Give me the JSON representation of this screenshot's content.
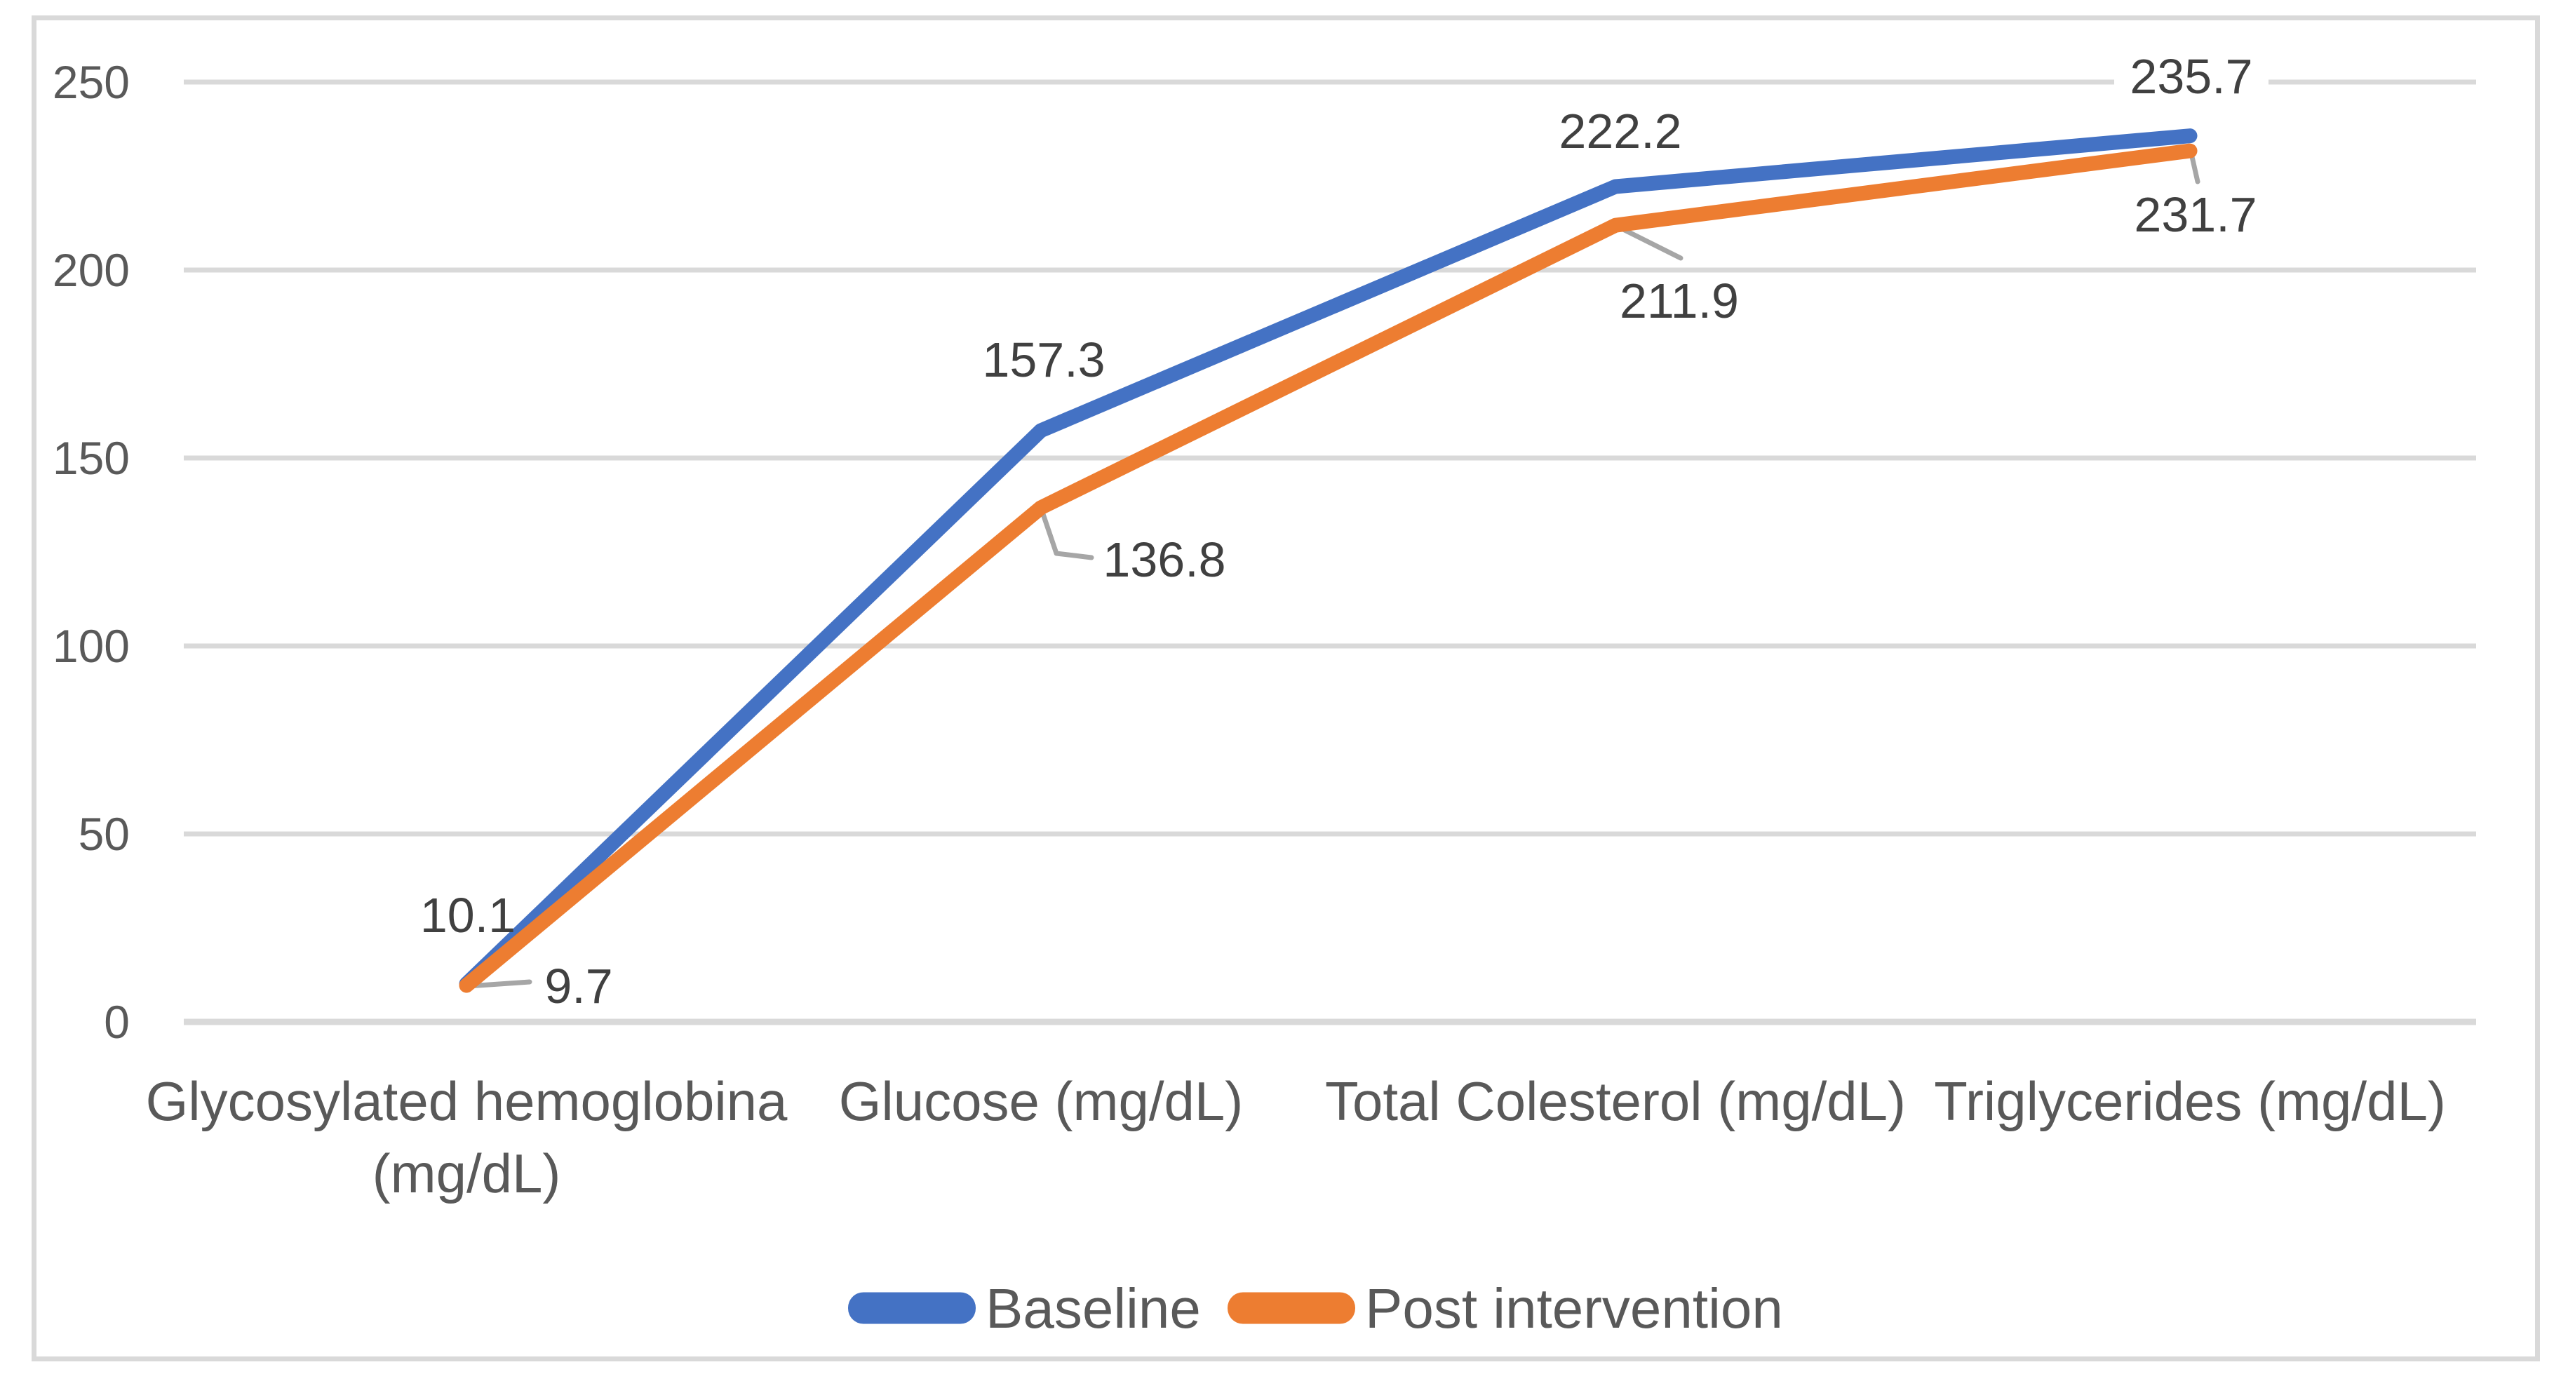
{
  "chart_data": {
    "type": "line",
    "title": "",
    "categories": [
      "Glycosylated hemoglobina (mg/dL)",
      "Glucose (mg/dL)",
      "Total Colesterol (mg/dL)",
      "Triglycerides (mg/dL)"
    ],
    "category_lines": [
      [
        "Glycosylated hemoglobina",
        "(mg/dL)"
      ],
      [
        "Glucose (mg/dL)"
      ],
      [
        "Total Colesterol (mg/dL)"
      ],
      [
        "Triglycerides (mg/dL)"
      ]
    ],
    "series": [
      {
        "name": "Baseline",
        "color": "#4472C4",
        "values": [
          10.1,
          157.3,
          222.2,
          235.7
        ]
      },
      {
        "name": "Post intervention",
        "color": "#ED7D31",
        "values": [
          9.7,
          136.8,
          211.9,
          231.7
        ]
      }
    ],
    "xlabel": "",
    "ylabel": "",
    "ylim": [
      0,
      250
    ],
    "yticks": [
      0,
      50,
      100,
      150,
      200,
      250
    ],
    "grid": true,
    "data_labels_shown": true,
    "legend_position": "bottom-center",
    "colors": {
      "grid": "#D9D9D9",
      "frame": "#D9D9D9",
      "tick_text": "#595959",
      "category_text": "#595959",
      "legend_text": "#595959",
      "label_text": "#404040",
      "leader": "#A6A6A6",
      "background": "#FFFFFF"
    }
  }
}
